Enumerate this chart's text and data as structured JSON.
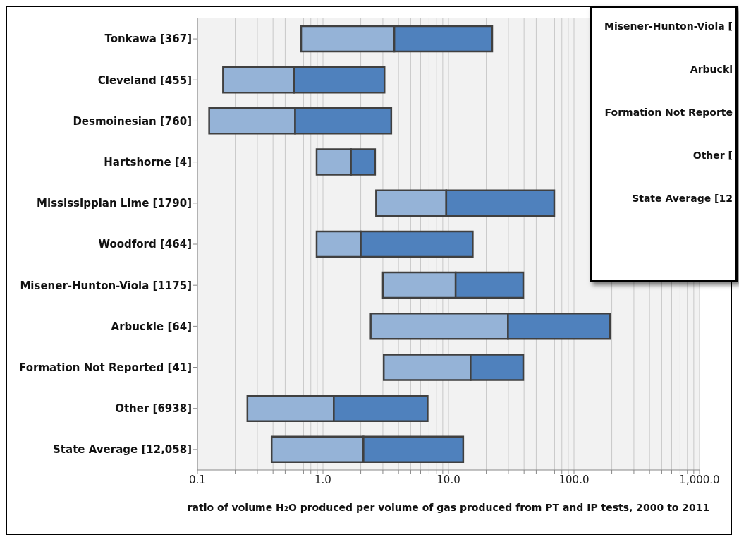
{
  "chart_data": {
    "type": "bar",
    "orientation": "horizontal",
    "categories": [
      "Tonkawa [367]",
      "Cleveland [455]",
      "Desmoinesian [760]",
      "Hartshorne [4]",
      "Mississippian Lime [1790]",
      "Woodford [464]",
      "Misener-Hunton-Viola [1175]",
      "Arbuckle [64]",
      "Formation Not Reported [41]",
      "Other [6938]",
      "State Average [12,058]"
    ],
    "series": [
      {
        "color": "#95b3d7",
        "base": [
          0.67,
          0.16,
          0.124,
          0.89,
          2.65,
          0.89,
          3.0,
          2.4,
          3.05,
          0.25,
          0.39
        ],
        "values": [
          3.03,
          0.43,
          0.476,
          0.78,
          6.95,
          1.11,
          8.4,
          27.4,
          11.95,
          0.97,
          1.71
        ]
      },
      {
        "color": "#4f81bd",
        "base": [
          3.7,
          0.59,
          0.6,
          1.67,
          9.6,
          2.0,
          11.4,
          29.8,
          15,
          1.22,
          2.1
        ],
        "values": [
          18.6,
          2.5,
          2.9,
          0.93,
          60,
          13.6,
          28,
          163,
          24.4,
          5.6,
          11
        ]
      }
    ],
    "log": "x",
    "xlim": [
      0.1,
      1000
    ],
    "xticks": [
      {
        "value": 0.1,
        "label": "0.1"
      },
      {
        "value": 0.2,
        "label": null
      },
      {
        "value": 0.3,
        "label": null
      },
      {
        "value": 0.4,
        "label": null
      },
      {
        "value": 0.5,
        "label": null
      },
      {
        "value": 0.6,
        "label": null
      },
      {
        "value": 0.7,
        "label": null
      },
      {
        "value": 0.8,
        "label": null
      },
      {
        "value": 0.9,
        "label": null
      },
      {
        "value": 1,
        "label": "1.0"
      },
      {
        "value": 2,
        "label": null
      },
      {
        "value": 3,
        "label": null
      },
      {
        "value": 4,
        "label": null
      },
      {
        "value": 5,
        "label": null
      },
      {
        "value": 6,
        "label": null
      },
      {
        "value": 7,
        "label": null
      },
      {
        "value": 8,
        "label": null
      },
      {
        "value": 9,
        "label": null
      },
      {
        "value": 10,
        "label": "10.0"
      },
      {
        "value": 20,
        "label": null
      },
      {
        "value": 30,
        "label": null
      },
      {
        "value": 40,
        "label": null
      },
      {
        "value": 50,
        "label": null
      },
      {
        "value": 60,
        "label": null
      },
      {
        "value": 70,
        "label": null
      },
      {
        "value": 80,
        "label": null
      },
      {
        "value": 90,
        "label": null
      },
      {
        "value": 100,
        "label": "100.0"
      },
      {
        "value": 200,
        "label": null
      },
      {
        "value": 300,
        "label": null
      },
      {
        "value": 400,
        "label": null
      },
      {
        "value": 500,
        "label": null
      },
      {
        "value": 600,
        "label": null
      },
      {
        "value": 700,
        "label": null
      },
      {
        "value": 800,
        "label": null
      },
      {
        "value": 900,
        "label": null
      },
      {
        "value": 1000,
        "label": "1,000.0"
      }
    ],
    "grid": "x",
    "xlabel": "ratio of volume H₂O produced per volume of gas produced from PT and IP tests, 2000 to 2011",
    "annotations": [
      "Misener-Hunton-Viola [",
      "Arbuckl",
      "Formation Not Reporte",
      "Other [",
      "State Average [12"
    ]
  }
}
